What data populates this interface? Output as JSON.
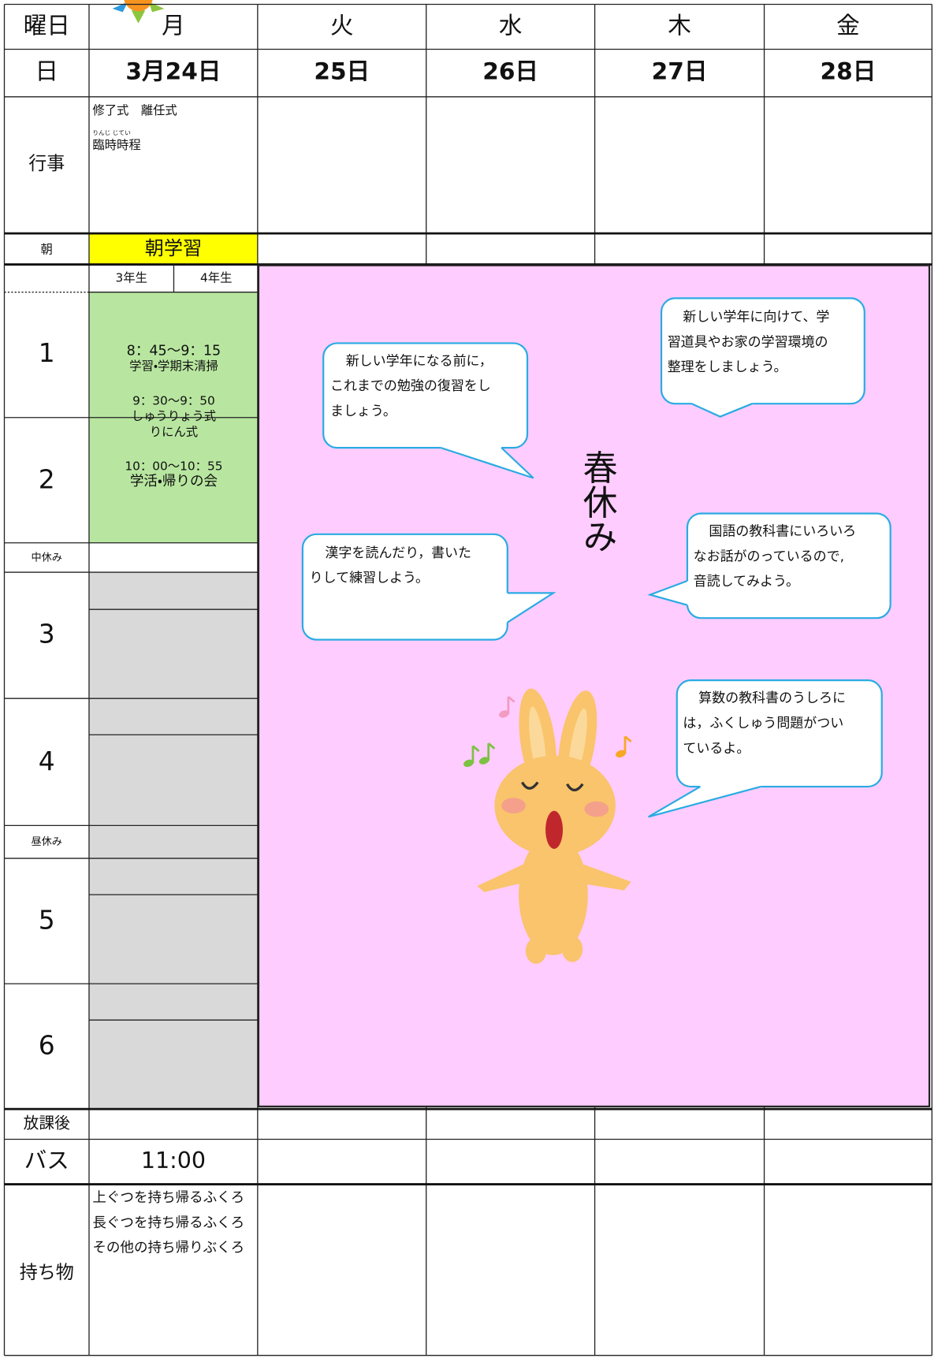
{
  "table": {
    "header": [
      "曜日",
      "月",
      "火",
      "水",
      "木",
      "金"
    ],
    "dates": [
      "日",
      "3月24日",
      "25日",
      "26日",
      "27日",
      "28日"
    ],
    "events": {
      "label": "行事",
      "monday": [
        "修了式　離任式",
        "臨時時程"
      ],
      "ruby": "りんじ じてい"
    },
    "morning": {
      "label": "朝",
      "monday": "朝学習"
    },
    "grades": [
      "3年生",
      "4年生"
    ],
    "periods": [
      "1",
      "2",
      "3",
      "4",
      "5",
      "6"
    ],
    "breaks": [
      "中休み",
      "昼休み"
    ],
    "monday_schedule": [
      "8：45～9：15",
      "学習・学期末清掃",
      "9：30～9：50",
      "しゅうりょう式",
      "りにん式",
      "10：00～10：55",
      "学活・帰りの会"
    ],
    "after_school": "放課後",
    "bus": {
      "label": "バス",
      "monday": "11:00"
    },
    "belongings": {
      "label": "持ち物",
      "monday": [
        "上ぐつを持ち帰るふくろ",
        "長ぐつを持ち帰るふくろ",
        "その他の持ち帰りぶくろ"
      ]
    }
  },
  "spring_break": {
    "title": "春休み",
    "bubbles": [
      [
        "新しい学年になる前に，",
        "これまでの勉強の復習をし",
        "ましょう。"
      ],
      [
        "新しい学年に向けて、学",
        "習道具やお家の学習環境の",
        "整理をしましょう。"
      ],
      [
        "漢字を読んだり，書いた",
        "りして練習しよう。"
      ],
      [
        "国語の教科書にいろいろ",
        "なお話がのっているので,",
        "音読してみよう。"
      ],
      [
        "算数の教科書のうしろに",
        "は，ふくしゅう問題がつい",
        "ているよ。"
      ]
    ]
  }
}
